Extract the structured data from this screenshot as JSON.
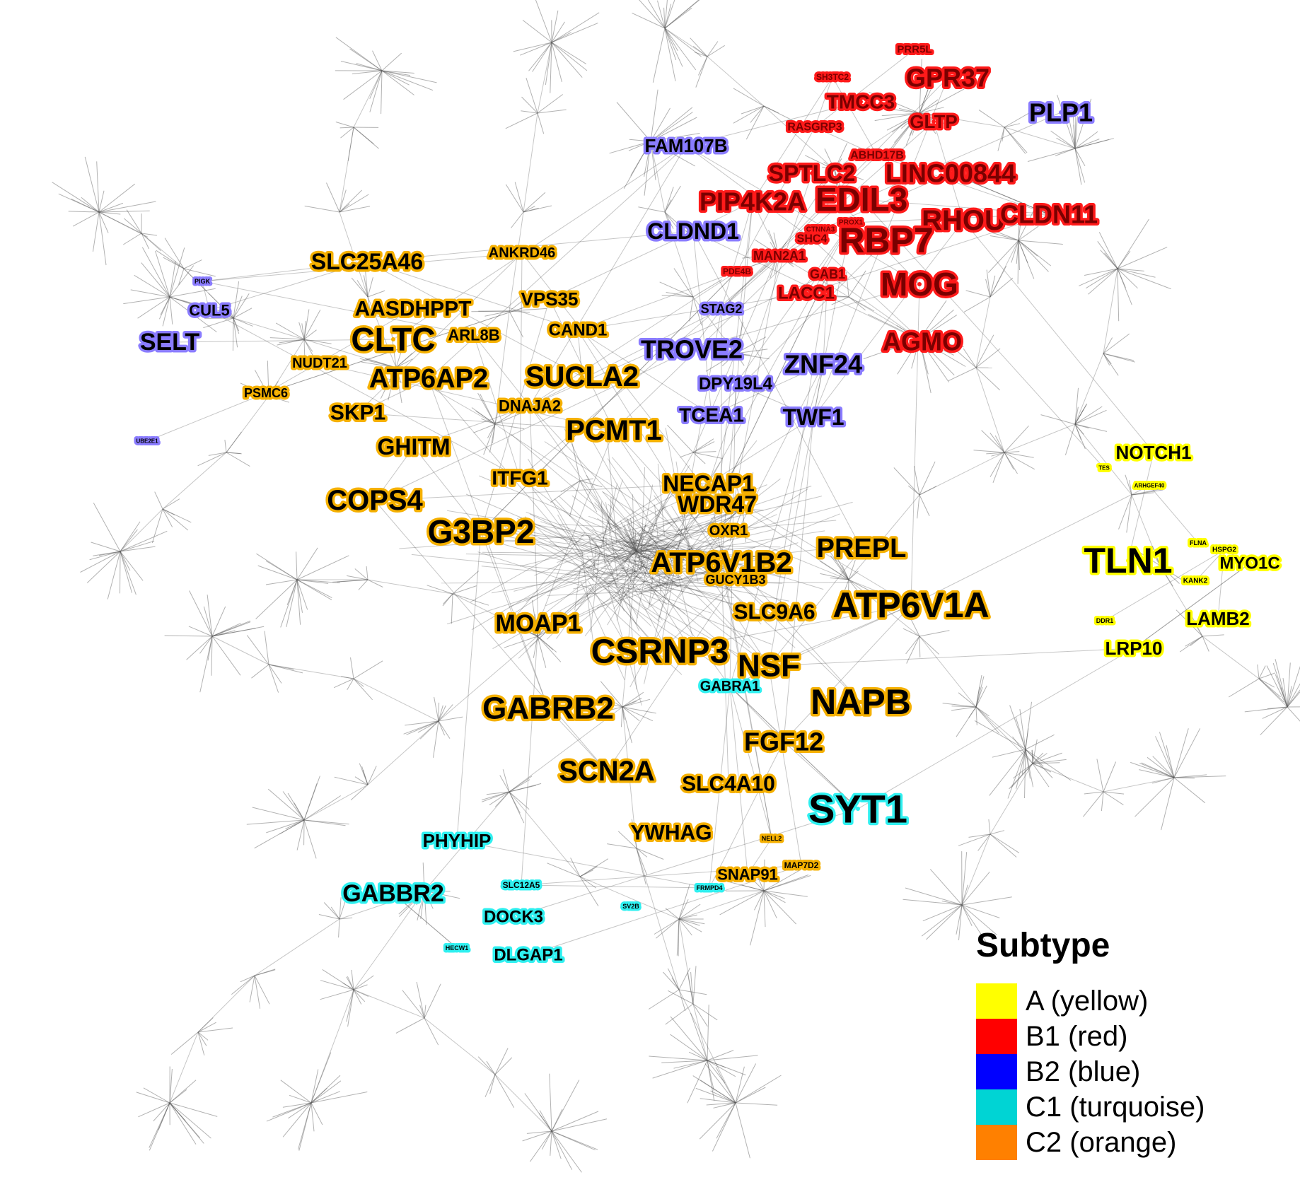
{
  "legend": {
    "title": "Subtype",
    "items": [
      {
        "label": "A (yellow)",
        "color": "#ffff00"
      },
      {
        "label": "B1 (red)",
        "color": "#ff0000"
      },
      {
        "label": "B2 (blue)",
        "color": "#0000ff"
      },
      {
        "label": "C1 (turquoise)",
        "color": "#00d4d4"
      },
      {
        "label": "C2 (orange)",
        "color": "#ff8000"
      }
    ]
  },
  "halo_colors": {
    "A": "#ffff00",
    "B1": "#ff1a1a",
    "B2": "#8a7cff",
    "C1": "#2ff0f0",
    "C2": "#f5b000"
  },
  "genes": [
    {
      "name": "PRR5L",
      "subtype": "B1"
    },
    {
      "name": "SH3TC2",
      "subtype": "B1"
    },
    {
      "name": "GPR37",
      "subtype": "B1"
    },
    {
      "name": "TMCC3",
      "subtype": "B1"
    },
    {
      "name": "GLTP",
      "subtype": "B1"
    },
    {
      "name": "RASGRP3",
      "subtype": "B1"
    },
    {
      "name": "ABHD17B",
      "subtype": "B1"
    },
    {
      "name": "SPTLC2",
      "subtype": "B1"
    },
    {
      "name": "LINC00844",
      "subtype": "B1"
    },
    {
      "name": "PIP4K2A",
      "subtype": "B1"
    },
    {
      "name": "EDIL3",
      "subtype": "B1"
    },
    {
      "name": "RHOU",
      "subtype": "B1"
    },
    {
      "name": "CLDN11",
      "subtype": "B1"
    },
    {
      "name": "RBP7",
      "subtype": "B1"
    },
    {
      "name": "SHC4",
      "subtype": "B1"
    },
    {
      "name": "MAN2A1",
      "subtype": "B1"
    },
    {
      "name": "PDE4B",
      "subtype": "B1"
    },
    {
      "name": "GAB1",
      "subtype": "B1"
    },
    {
      "name": "LACC1",
      "subtype": "B1"
    },
    {
      "name": "MOG",
      "subtype": "B1"
    },
    {
      "name": "AGMO",
      "subtype": "B1"
    },
    {
      "name": "CTNNA3",
      "subtype": "B1"
    },
    {
      "name": "PROX1",
      "subtype": "B1"
    },
    {
      "name": "PLP1",
      "subtype": "B2"
    },
    {
      "name": "FAM107B",
      "subtype": "B2"
    },
    {
      "name": "CLDND1",
      "subtype": "B2"
    },
    {
      "name": "STAG2",
      "subtype": "B2"
    },
    {
      "name": "TROVE2",
      "subtype": "B2"
    },
    {
      "name": "ZNF24",
      "subtype": "B2"
    },
    {
      "name": "DPY19L4",
      "subtype": "B2"
    },
    {
      "name": "TCEA1",
      "subtype": "B2"
    },
    {
      "name": "TWF1",
      "subtype": "B2"
    },
    {
      "name": "CUL5",
      "subtype": "B2"
    },
    {
      "name": "SELT",
      "subtype": "B2"
    },
    {
      "name": "PIGK",
      "subtype": "B2"
    },
    {
      "name": "UBE2E1",
      "subtype": "B2"
    },
    {
      "name": "SLC25A46",
      "subtype": "C2"
    },
    {
      "name": "ANKRD46",
      "subtype": "C2"
    },
    {
      "name": "AASDHPPT",
      "subtype": "C2"
    },
    {
      "name": "VPS35",
      "subtype": "C2"
    },
    {
      "name": "CLTC",
      "subtype": "C2"
    },
    {
      "name": "ARL8B",
      "subtype": "C2"
    },
    {
      "name": "CAND1",
      "subtype": "C2"
    },
    {
      "name": "NUDT21",
      "subtype": "C2"
    },
    {
      "name": "ATP6AP2",
      "subtype": "C2"
    },
    {
      "name": "SUCLA2",
      "subtype": "C2"
    },
    {
      "name": "PSMC6",
      "subtype": "C2"
    },
    {
      "name": "SKP1",
      "subtype": "C2"
    },
    {
      "name": "DNAJA2",
      "subtype": "C2"
    },
    {
      "name": "PCMT1",
      "subtype": "C2"
    },
    {
      "name": "GHITM",
      "subtype": "C2"
    },
    {
      "name": "ITFG1",
      "subtype": "C2"
    },
    {
      "name": "NECAP1",
      "subtype": "C2"
    },
    {
      "name": "COPS4",
      "subtype": "C2"
    },
    {
      "name": "WDR47",
      "subtype": "C2"
    },
    {
      "name": "G3BP2",
      "subtype": "C2"
    },
    {
      "name": "OXR1",
      "subtype": "C2"
    },
    {
      "name": "PREPL",
      "subtype": "C2"
    },
    {
      "name": "ATP6V1B2",
      "subtype": "C2"
    },
    {
      "name": "GUCY1B3",
      "subtype": "C2"
    },
    {
      "name": "ATP6V1A",
      "subtype": "C2"
    },
    {
      "name": "SLC9A6",
      "subtype": "C2"
    },
    {
      "name": "MOAP1",
      "subtype": "C2"
    },
    {
      "name": "CSRNP3",
      "subtype": "C2"
    },
    {
      "name": "NSF",
      "subtype": "C2"
    },
    {
      "name": "NAPB",
      "subtype": "C2"
    },
    {
      "name": "GABRB2",
      "subtype": "C2"
    },
    {
      "name": "FGF12",
      "subtype": "C2"
    },
    {
      "name": "SCN2A",
      "subtype": "C2"
    },
    {
      "name": "SLC4A10",
      "subtype": "C2"
    },
    {
      "name": "YWHAG",
      "subtype": "C2"
    },
    {
      "name": "SNAP91",
      "subtype": "C2"
    },
    {
      "name": "MAP7D2",
      "subtype": "C2"
    },
    {
      "name": "NELL2",
      "subtype": "C2"
    },
    {
      "name": "GABRA1",
      "subtype": "C1"
    },
    {
      "name": "SYT1",
      "subtype": "C1"
    },
    {
      "name": "PHYHIP",
      "subtype": "C1"
    },
    {
      "name": "GABBR2",
      "subtype": "C1"
    },
    {
      "name": "SLC12A5",
      "subtype": "C1"
    },
    {
      "name": "DOCK3",
      "subtype": "C1"
    },
    {
      "name": "DLGAP1",
      "subtype": "C1"
    },
    {
      "name": "FRMPD4",
      "subtype": "C1"
    },
    {
      "name": "SV2B",
      "subtype": "C1"
    },
    {
      "name": "HECW1",
      "subtype": "C1"
    },
    {
      "name": "NOTCH1",
      "subtype": "A"
    },
    {
      "name": "TLN1",
      "subtype": "A"
    },
    {
      "name": "MYO1C",
      "subtype": "A"
    },
    {
      "name": "LAMB2",
      "subtype": "A"
    },
    {
      "name": "LRP10",
      "subtype": "A"
    },
    {
      "name": "KANK2",
      "subtype": "A"
    },
    {
      "name": "HSPG2",
      "subtype": "A"
    },
    {
      "name": "FLNA",
      "subtype": "A"
    },
    {
      "name": "DDR1",
      "subtype": "A"
    },
    {
      "name": "TES",
      "subtype": "A"
    },
    {
      "name": "ARHGEF40",
      "subtype": "A"
    }
  ]
}
